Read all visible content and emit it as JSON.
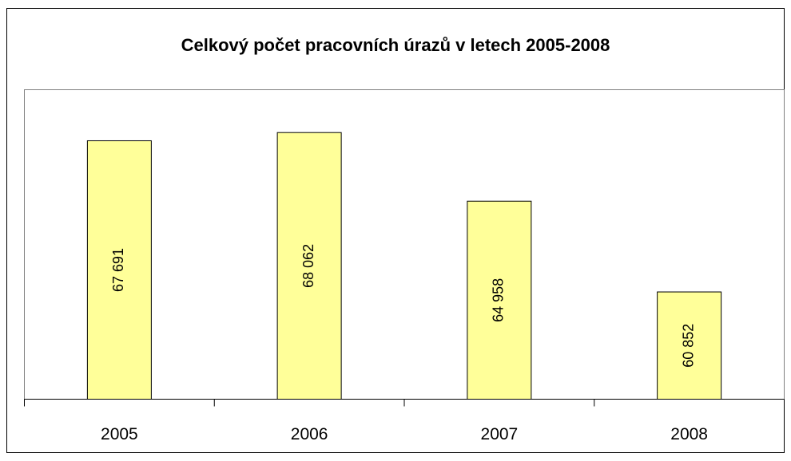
{
  "chart_data": {
    "type": "bar",
    "title": "Celkový počet pracovních úrazů v letech 2005-2008",
    "categories": [
      "2005",
      "2006",
      "2007",
      "2008"
    ],
    "values": [
      67691,
      68062,
      64958,
      60852
    ],
    "value_labels": [
      "67 691",
      "68 062",
      "64 958",
      "60 852"
    ],
    "color": "#ffff99",
    "ylim": [
      56000,
      70000
    ]
  }
}
